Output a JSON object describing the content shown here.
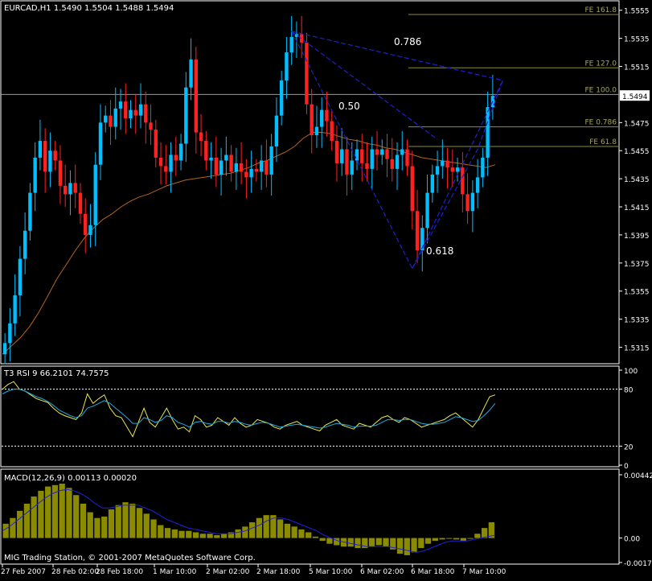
{
  "header": {
    "symbol_line": "EURCAD,H1  1.5490 1.5504 1.5488 1.5494"
  },
  "rsi_header": "T3 RSI 9 66.2101 74.7575",
  "macd_header": "MACD(12,26,9) 0.00113 0.00020",
  "footer_text": "MIG Trading Station, © 2001-2007 MetaQuotes Software Corp.",
  "colors": {
    "background": "#000000",
    "bull_candle": "#00BFFF",
    "bear_candle": "#FF2020",
    "moving_average": "#B5651D",
    "fib_lines": "#8B8B3C",
    "fib_labels": "#A6A65A",
    "pattern_lines": "#2020C8",
    "rsi_main": "#E8E850",
    "rsi_signal": "#20A8E0",
    "macd_hist": "#8B8B00",
    "macd_signal": "#2020E0",
    "grid_frame": "#FFFFFF"
  },
  "chart_data": [
    {
      "type": "candlestick",
      "title": "EURCAD,H1",
      "ylim": [
        1.5305,
        1.556
      ],
      "y_ticks": [
        "1.5555",
        "1.5535",
        "1.5515",
        "1.5475",
        "1.5455",
        "1.5435",
        "1.5415",
        "1.5395",
        "1.5375",
        "1.5355",
        "1.5335",
        "1.5315"
      ],
      "current_price": "1.5494",
      "x_ticks": [
        "27 Feb 2007",
        "28 Feb 02:00",
        "28 Feb 18:00",
        "1 Mar 10:00",
        "2 Mar 02:00",
        "2 Mar 18:00",
        "5 Mar 10:00",
        "6 Mar 02:00",
        "6 Mar 18:00",
        "7 Mar 10:00"
      ],
      "closes": [
        1.5318,
        1.5332,
        1.5352,
        1.5378,
        1.5398,
        1.5425,
        1.545,
        1.5462,
        1.544,
        1.5455,
        1.5448,
        1.543,
        1.5424,
        1.5432,
        1.5425,
        1.541,
        1.5395,
        1.5402,
        1.5445,
        1.5475,
        1.548,
        1.5472,
        1.5485,
        1.549,
        1.5478,
        1.5484,
        1.548,
        1.5488,
        1.5475,
        1.547,
        1.545,
        1.5444,
        1.544,
        1.5452,
        1.5448,
        1.546,
        1.55,
        1.552,
        1.5468,
        1.5462,
        1.5448,
        1.545,
        1.5438,
        1.5448,
        1.5452,
        1.544,
        1.5446,
        1.544,
        1.5436,
        1.5442,
        1.544,
        1.5448,
        1.5438,
        1.5458,
        1.548,
        1.5505,
        1.5525,
        1.5536,
        1.5538,
        1.5532,
        1.5488,
        1.5466,
        1.5472,
        1.5484,
        1.5476,
        1.5462,
        1.5446,
        1.5456,
        1.5438,
        1.5448,
        1.5456,
        1.5446,
        1.5442,
        1.5456,
        1.5452,
        1.5456,
        1.5449,
        1.5442,
        1.5452,
        1.5456,
        1.5444,
        1.5412,
        1.5384,
        1.54,
        1.5425,
        1.5438,
        1.5444,
        1.5448,
        1.5443,
        1.544,
        1.5443,
        1.5424,
        1.5412,
        1.5425,
        1.5436,
        1.545,
        1.5486,
        1.5494
      ],
      "ma_values": [
        1.531,
        1.5316,
        1.5322,
        1.533,
        1.534,
        1.5352,
        1.5364,
        1.5374,
        1.5384,
        1.5393,
        1.54,
        1.5406,
        1.541,
        1.5415,
        1.5419,
        1.5422,
        1.5424,
        1.5427,
        1.543,
        1.5432,
        1.5434,
        1.5435,
        1.5436,
        1.5437,
        1.5438,
        1.5439,
        1.5441,
        1.5443,
        1.5446,
        1.5448,
        1.5451,
        1.5454,
        1.5458,
        1.5464,
        1.5468,
        1.5468,
        1.5467,
        1.5465,
        1.5463,
        1.5462,
        1.546,
        1.5459,
        1.5457,
        1.5456,
        1.5454,
        1.5452,
        1.545,
        1.5449,
        1.5448,
        1.5447,
        1.5446,
        1.5445,
        1.5444,
        1.5443,
        1.5445
      ],
      "fib_levels": [
        {
          "label": "FE 161.8",
          "value": 1.5552
        },
        {
          "label": "FE 127.0",
          "value": 1.5514
        },
        {
          "label": "FE 100.0",
          "value": 1.5495
        },
        {
          "label": "FE 0.786",
          "value": 1.5472
        },
        {
          "label": "FE 61.8",
          "value": 1.5458
        }
      ],
      "pattern_labels": [
        "0.786",
        "0.50",
        "0.618"
      ]
    },
    {
      "type": "line",
      "title": "T3 RSI 9",
      "values_printed": [
        "66.2101",
        "74.7575"
      ],
      "ylim": [
        0,
        100
      ],
      "y_ticks": [
        "100",
        "80",
        "20",
        "0"
      ],
      "series": [
        {
          "name": "RSI",
          "values": [
            80,
            85,
            88,
            80,
            78,
            74,
            70,
            68,
            66,
            60,
            55,
            52,
            50,
            48,
            55,
            75,
            65,
            70,
            74,
            60,
            52,
            50,
            40,
            30,
            45,
            60,
            45,
            40,
            50,
            60,
            48,
            38,
            40,
            35,
            52,
            48,
            40,
            42,
            50,
            46,
            42,
            50,
            44,
            40,
            42,
            48,
            46,
            44,
            40,
            38,
            42,
            44,
            46,
            42,
            40,
            38,
            36,
            42,
            45,
            48,
            42,
            40,
            38,
            44,
            42,
            40,
            45,
            50,
            52,
            48,
            45,
            50,
            48,
            44,
            40,
            42,
            44,
            46,
            48,
            52,
            55,
            50,
            45,
            40,
            48,
            60,
            72,
            74
          ]
        },
        {
          "name": "Signal",
          "values": [
            75,
            78,
            80,
            80,
            78,
            75,
            72,
            70,
            67,
            63,
            58,
            55,
            52,
            50,
            52,
            60,
            62,
            65,
            68,
            65,
            60,
            55,
            50,
            44,
            44,
            50,
            48,
            45,
            47,
            52,
            50,
            45,
            43,
            40,
            45,
            46,
            44,
            43,
            46,
            46,
            44,
            46,
            45,
            43,
            42,
            44,
            45,
            44,
            42,
            40,
            41,
            42,
            43,
            42,
            41,
            40,
            39,
            40,
            42,
            44,
            43,
            42,
            40,
            41,
            41,
            41,
            42,
            45,
            48,
            48,
            47,
            48,
            48,
            46,
            44,
            43,
            43,
            44,
            45,
            48,
            51,
            50,
            48,
            46,
            47,
            52,
            58,
            65
          ]
        }
      ]
    },
    {
      "type": "bar",
      "title": "MACD(12,26,9)",
      "values_printed": [
        "0.00113",
        "0.00020"
      ],
      "ylim": [
        -0.00171,
        0.00442
      ],
      "y_ticks": [
        "0.00442",
        "0.00",
        "-0.00171"
      ],
      "series": [
        {
          "name": "MACD",
          "values": [
            0.001,
            0.0014,
            0.0019,
            0.0024,
            0.0029,
            0.0033,
            0.0036,
            0.0037,
            0.0038,
            0.0035,
            0.003,
            0.0024,
            0.0018,
            0.0014,
            0.0015,
            0.002,
            0.0023,
            0.0025,
            0.0024,
            0.0021,
            0.0017,
            0.0013,
            0.0009,
            0.0007,
            0.0006,
            0.0005,
            0.0005,
            0.0004,
            0.0003,
            0.0003,
            0.0002,
            0.0003,
            0.0004,
            0.0006,
            0.0008,
            0.0011,
            0.0014,
            0.0016,
            0.0016,
            0.0013,
            0.001,
            0.0008,
            0.0006,
            0.0004,
            0.0001,
            -0.0002,
            -0.0004,
            -0.0005,
            -0.0006,
            -0.0006,
            -0.0007,
            -0.0007,
            -0.0006,
            -0.0005,
            -0.0006,
            -0.0008,
            -0.0011,
            -0.0012,
            -0.001,
            -0.0007,
            -0.0004,
            -0.0002,
            -0.0001,
            0.0,
            -0.0001,
            -0.0002,
            0.0,
            0.0003,
            0.0007,
            0.0011
          ]
        },
        {
          "name": "Signal",
          "values": [
            0.0005,
            0.0008,
            0.0012,
            0.0016,
            0.002,
            0.0024,
            0.0028,
            0.0031,
            0.0033,
            0.0034,
            0.0033,
            0.0031,
            0.0028,
            0.0024,
            0.0021,
            0.0021,
            0.0022,
            0.0023,
            0.0023,
            0.0023,
            0.0021,
            0.0019,
            0.0016,
            0.0013,
            0.0011,
            0.0009,
            0.0007,
            0.0006,
            0.0005,
            0.0004,
            0.0003,
            0.0003,
            0.0003,
            0.0004,
            0.0005,
            0.0007,
            0.0009,
            0.0012,
            0.0014,
            0.0014,
            0.0013,
            0.0011,
            0.0009,
            0.0007,
            0.0005,
            0.0002,
            0.0,
            -0.0002,
            -0.0003,
            -0.0004,
            -0.0005,
            -0.0006,
            -0.0006,
            -0.0006,
            -0.0006,
            -0.0007,
            -0.0008,
            -0.0009,
            -0.001,
            -0.0009,
            -0.0007,
            -0.0005,
            -0.0003,
            -0.0002,
            -0.0002,
            -0.0002,
            -0.0001,
            0.0,
            0.0001,
            0.0002
          ]
        }
      ]
    }
  ]
}
